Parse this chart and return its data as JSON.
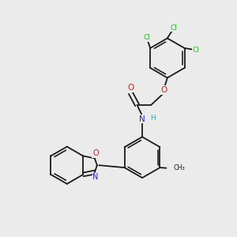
{
  "bg_color": "#ebebeb",
  "bond_color": "#1a1a1a",
  "atom_colors": {
    "C": "#1a1a1a",
    "H": "#4a9a9a",
    "N": "#2222cc",
    "O": "#cc2222",
    "Cl": "#22bb22"
  },
  "font_size": 7.0,
  "line_width": 1.3,
  "dbo": 0.12
}
